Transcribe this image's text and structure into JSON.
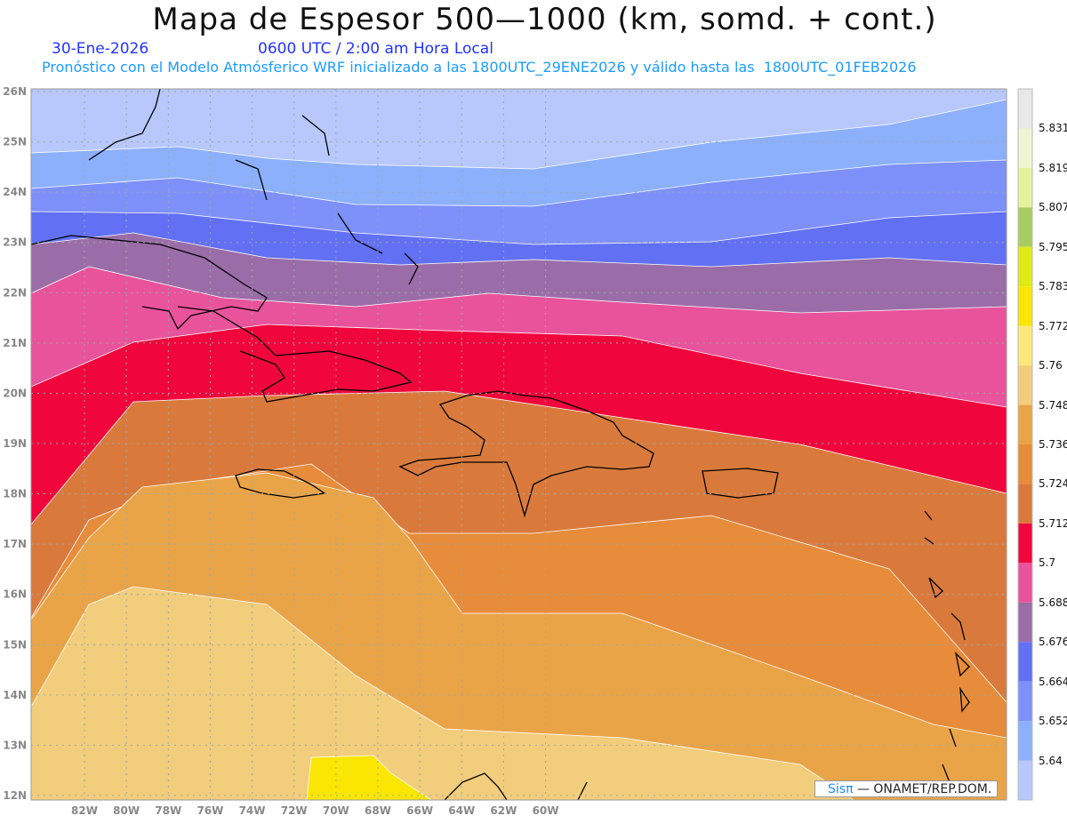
{
  "header": {
    "title": "Mapa de Espesor 500—1000 (km, somd. + cont.)",
    "date": "30-Ene-2026",
    "time": "0600 UTC / 2:00 am Hora Local",
    "subtitle": "Pronóstico con el Modelo Atmósferico WRF inicializado a las 1800UTC_29ENE2026 y válido hasta las  1800UTC_01FEB2026"
  },
  "axes": {
    "lon_labels": [
      "82W",
      "80W",
      "78W",
      "76W",
      "74W",
      "72W",
      "70W",
      "68W",
      "66W",
      "64W",
      "62W",
      "60W"
    ],
    "lat_labels": [
      "26N",
      "25N",
      "24N",
      "23N",
      "22N",
      "21N",
      "20N",
      "19N",
      "18N",
      "17N",
      "16N",
      "15N",
      "14N",
      "13N",
      "12N"
    ]
  },
  "colorbar": {
    "labels": [
      "5.831",
      "5.819",
      "5.807",
      "5.795",
      "5.783",
      "5.772",
      "5.76",
      "5.748",
      "5.736",
      "5.724",
      "5.712",
      "5.7",
      "5.688",
      "5.676",
      "5.664",
      "5.652",
      "5.64"
    ],
    "colors": [
      "#e8e8e8",
      "#eef5d0",
      "#e4f39a",
      "#a8cc62",
      "#e0ea14",
      "#fae600",
      "#fde87c",
      "#f2cd7c",
      "#eaa448",
      "#e68c3a",
      "#d97a3c",
      "#f0063c",
      "#e9539b",
      "#9b6da8",
      "#6270f4",
      "#7e90fa",
      "#8cb0fc",
      "#b8c8fc"
    ]
  },
  "credit": {
    "logo": "Sisπ",
    "text": " —  ONAMET/REP.DOM."
  }
}
